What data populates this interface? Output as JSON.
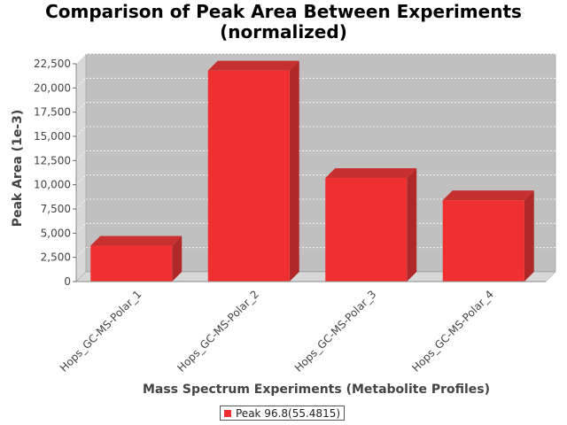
{
  "chart_data": {
    "type": "bar",
    "title_line1": "Comparison of Peak Area Between Experiments",
    "title_line2": "(normalized)",
    "xlabel": "Mass Spectrum Experiments (Metabolite Profiles)",
    "ylabel": "Peak Area (1e-3)",
    "categories": [
      "Hops_GC-MS-Polar_1",
      "Hops_GC-MS-Polar_2",
      "Hops_GC-MS-Polar_3",
      "Hops_GC-MS-Polar_4"
    ],
    "series": [
      {
        "name": "Peak 96.8(55.4815)",
        "values": [
          3700,
          21800,
          10700,
          8400
        ]
      }
    ],
    "ylim": [
      0,
      22500
    ],
    "yticks": [
      0,
      2500,
      5000,
      7500,
      10000,
      12500,
      15000,
      17500,
      20000,
      22500
    ],
    "ytick_labels": [
      "0",
      "2,500",
      "5,000",
      "7,500",
      "10,000",
      "12,500",
      "15,000",
      "17,500",
      "20,000",
      "22,500"
    ],
    "grid": true,
    "legend": "bottom",
    "colors": {
      "bar_front": "#f03030",
      "bar_side": "#b02828",
      "bar_top": "#c83030",
      "plot_bg": "#c0c0c0",
      "wall": "#d8d8d8"
    }
  }
}
